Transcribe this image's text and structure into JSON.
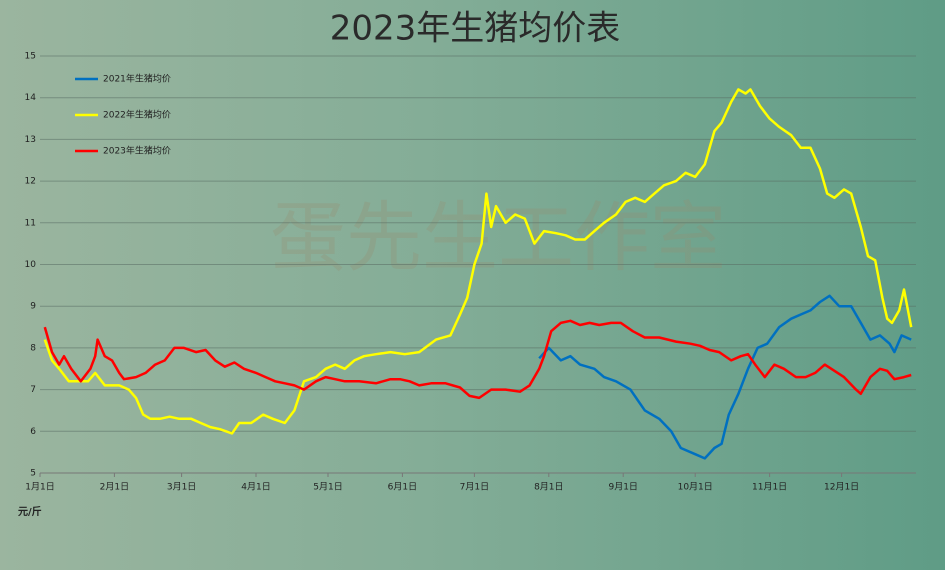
{
  "chart_data": {
    "type": "line",
    "title": "2023年生猪均价表",
    "watermark": "蛋先生工作室",
    "ylabel": "元/斤",
    "xlim": [
      0,
      365
    ],
    "xticks": [
      {
        "value": 0,
        "label": "1月1日"
      },
      {
        "value": 31,
        "label": "2月1日"
      },
      {
        "value": 59,
        "label": "3月1日"
      },
      {
        "value": 90,
        "label": "4月1日"
      },
      {
        "value": 120,
        "label": "5月1日"
      },
      {
        "value": 151,
        "label": "6月1日"
      },
      {
        "value": 181,
        "label": "7月1日"
      },
      {
        "value": 212,
        "label": "8月1日"
      },
      {
        "value": 243,
        "label": "9月1日"
      },
      {
        "value": 273,
        "label": "10月1日"
      },
      {
        "value": 304,
        "label": "11月1日"
      },
      {
        "value": 334,
        "label": "12月1日"
      }
    ],
    "ylim": [
      5,
      15
    ],
    "yticks": [
      5,
      6,
      7,
      8,
      9,
      10,
      11,
      12,
      13,
      14,
      15
    ],
    "grid": true,
    "legend": "top-left",
    "series": [
      {
        "name": "2021年生猪均价",
        "color": "#0070c0",
        "x": [
          208,
          212,
          217,
          221,
          225,
          231,
          235,
          240,
          246,
          252,
          258,
          263,
          267,
          273,
          277,
          281,
          284,
          287,
          291,
          295,
          299,
          303,
          308,
          313,
          317,
          321,
          325,
          329,
          333,
          338,
          342,
          346,
          350,
          354,
          356,
          359,
          363
        ],
        "values": [
          7.75,
          8.0,
          7.7,
          7.8,
          7.6,
          7.5,
          7.3,
          7.2,
          7.0,
          6.5,
          6.3,
          6.0,
          5.6,
          5.45,
          5.35,
          5.6,
          5.7,
          6.4,
          6.9,
          7.5,
          8.0,
          8.1,
          8.5,
          8.7,
          8.8,
          8.9,
          9.1,
          9.25,
          9.0,
          9.0,
          8.6,
          8.2,
          8.3,
          8.1,
          7.9,
          8.3,
          8.2
        ]
      },
      {
        "name": "2022年生猪均价",
        "color": "#ffff00",
        "x": [
          2,
          5,
          8,
          12,
          16,
          20,
          23,
          27,
          30,
          33,
          37,
          40,
          43,
          46,
          50,
          54,
          58,
          63,
          67,
          71,
          75,
          80,
          83,
          88,
          93,
          97,
          102,
          106,
          110,
          115,
          119,
          123,
          127,
          131,
          135,
          140,
          146,
          152,
          158,
          165,
          171,
          175,
          178,
          181,
          184,
          186,
          188,
          190,
          194,
          198,
          202,
          206,
          210,
          215,
          219,
          223,
          227,
          231,
          235,
          240,
          244,
          248,
          252,
          256,
          260,
          265,
          269,
          273,
          277,
          281,
          284,
          288,
          291,
          294,
          296,
          300,
          304,
          308,
          313,
          317,
          321,
          325,
          328,
          331,
          335,
          338,
          342,
          345,
          348,
          351,
          353,
          355,
          358,
          360,
          363
        ],
        "values": [
          8.2,
          7.7,
          7.5,
          7.2,
          7.2,
          7.2,
          7.4,
          7.1,
          7.1,
          7.1,
          7.0,
          6.8,
          6.4,
          6.3,
          6.3,
          6.35,
          6.3,
          6.3,
          6.2,
          6.1,
          6.05,
          5.95,
          6.2,
          6.2,
          6.4,
          6.3,
          6.2,
          6.5,
          7.2,
          7.3,
          7.5,
          7.6,
          7.5,
          7.7,
          7.8,
          7.85,
          7.9,
          7.85,
          7.9,
          8.2,
          8.3,
          8.8,
          9.2,
          10.0,
          10.5,
          11.7,
          10.9,
          11.4,
          11.0,
          11.2,
          11.1,
          10.5,
          10.8,
          10.75,
          10.7,
          10.6,
          10.6,
          10.8,
          11.0,
          11.2,
          11.5,
          11.6,
          11.5,
          11.7,
          11.9,
          12.0,
          12.2,
          12.1,
          12.4,
          13.2,
          13.4,
          13.9,
          14.2,
          14.1,
          14.2,
          13.8,
          13.5,
          13.3,
          13.1,
          12.8,
          12.8,
          12.3,
          11.7,
          11.6,
          11.8,
          11.7,
          10.9,
          10.2,
          10.1,
          9.2,
          8.7,
          8.6,
          8.9,
          9.4,
          8.5
        ]
      },
      {
        "name": "2023年生猪均价",
        "color": "#ff0000",
        "x": [
          2,
          5,
          8,
          10,
          13,
          17,
          21,
          23,
          24,
          27,
          30,
          33,
          35,
          40,
          44,
          48,
          52,
          56,
          60,
          65,
          69,
          73,
          77,
          81,
          85,
          90,
          94,
          98,
          102,
          106,
          110,
          115,
          119,
          123,
          127,
          133,
          140,
          146,
          150,
          154,
          158,
          163,
          169,
          175,
          179,
          183,
          188,
          194,
          200,
          204,
          208,
          210,
          213,
          217,
          221,
          225,
          229,
          233,
          238,
          242,
          247,
          252,
          258,
          265,
          271,
          275,
          279,
          283,
          288,
          292,
          295,
          298,
          302,
          306,
          310,
          315,
          319,
          323,
          327,
          331,
          335,
          340,
          342,
          346,
          350,
          353,
          356,
          360,
          363
        ],
        "values": [
          8.5,
          7.9,
          7.6,
          7.8,
          7.5,
          7.2,
          7.5,
          7.8,
          8.2,
          7.8,
          7.7,
          7.4,
          7.25,
          7.3,
          7.4,
          7.6,
          7.7,
          8.0,
          8.0,
          7.9,
          7.95,
          7.7,
          7.55,
          7.65,
          7.5,
          7.4,
          7.3,
          7.2,
          7.15,
          7.1,
          7.0,
          7.2,
          7.3,
          7.25,
          7.2,
          7.2,
          7.15,
          7.25,
          7.25,
          7.2,
          7.1,
          7.15,
          7.15,
          7.05,
          6.85,
          6.8,
          7.0,
          7.0,
          6.95,
          7.1,
          7.5,
          7.8,
          8.4,
          8.6,
          8.65,
          8.55,
          8.6,
          8.55,
          8.6,
          8.6,
          8.4,
          8.25,
          8.25,
          8.15,
          8.1,
          8.05,
          7.95,
          7.9,
          7.7,
          7.8,
          7.85,
          7.6,
          7.3,
          7.6,
          7.5,
          7.3,
          7.3,
          7.4,
          7.6,
          7.45,
          7.3,
          7.0,
          6.9,
          7.3,
          7.5,
          7.45,
          7.25,
          7.3,
          7.35
        ]
      }
    ]
  }
}
